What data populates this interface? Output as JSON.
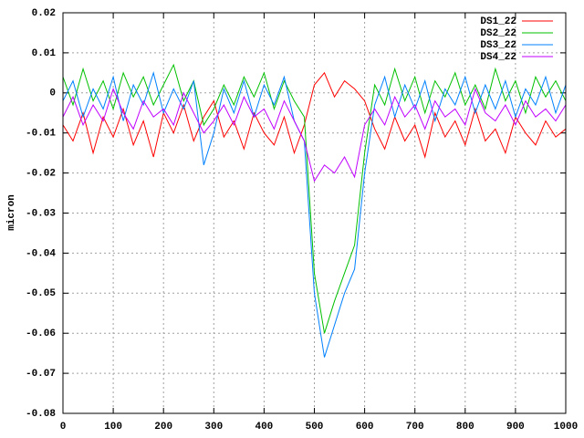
{
  "chart_data": {
    "type": "line",
    "y_label": "micron",
    "x": [
      0,
      20,
      40,
      60,
      80,
      100,
      120,
      140,
      160,
      180,
      200,
      220,
      240,
      260,
      280,
      300,
      320,
      340,
      360,
      380,
      400,
      420,
      440,
      460,
      480,
      500,
      520,
      540,
      560,
      580,
      600,
      620,
      640,
      660,
      680,
      700,
      720,
      740,
      760,
      780,
      800,
      820,
      840,
      860,
      880,
      900,
      920,
      940,
      960,
      980,
      1000
    ],
    "series": [
      {
        "name": "DS1_22",
        "color": "#ff0000",
        "values": [
          -0.008,
          -0.012,
          -0.005,
          -0.015,
          -0.006,
          -0.011,
          -0.004,
          -0.013,
          -0.007,
          -0.016,
          -0.005,
          -0.01,
          -0.003,
          -0.012,
          -0.006,
          -0.002,
          -0.011,
          -0.007,
          -0.014,
          -0.005,
          -0.01,
          -0.013,
          -0.006,
          -0.015,
          -0.008,
          0.002,
          0.005,
          -0.001,
          0.003,
          0.001,
          -0.002,
          -0.009,
          -0.014,
          -0.006,
          -0.012,
          -0.008,
          -0.016,
          -0.005,
          -0.011,
          -0.007,
          -0.013,
          -0.004,
          -0.012,
          -0.009,
          -0.015,
          -0.006,
          -0.01,
          -0.013,
          -0.007,
          -0.011,
          -0.009
        ]
      },
      {
        "name": "DS2_22",
        "color": "#00c000",
        "values": [
          0.004,
          -0.003,
          0.006,
          -0.002,
          0.003,
          -0.004,
          0.005,
          -0.001,
          0.004,
          -0.003,
          0.002,
          0.007,
          -0.002,
          0.003,
          -0.008,
          -0.004,
          0.002,
          -0.003,
          0.004,
          -0.001,
          0.005,
          -0.004,
          0.003,
          -0.002,
          -0.006,
          -0.045,
          -0.06,
          -0.052,
          -0.045,
          -0.038,
          -0.015,
          0.002,
          -0.003,
          0.006,
          -0.002,
          0.004,
          -0.005,
          0.003,
          -0.001,
          0.005,
          -0.003,
          0.002,
          -0.004,
          0.006,
          -0.002,
          0.003,
          -0.005,
          0.004,
          -0.001,
          0.003,
          -0.002
        ]
      },
      {
        "name": "DS3_22",
        "color": "#0080ff",
        "values": [
          -0.002,
          0.003,
          -0.006,
          0.001,
          -0.004,
          0.004,
          -0.007,
          0.002,
          -0.003,
          0.005,
          -0.005,
          0.001,
          -0.004,
          0.003,
          -0.018,
          -0.01,
          0.001,
          -0.005,
          0.003,
          -0.006,
          0.002,
          -0.003,
          0.004,
          -0.007,
          -0.012,
          -0.05,
          -0.066,
          -0.058,
          -0.05,
          -0.044,
          -0.02,
          -0.003,
          0.004,
          -0.006,
          0.002,
          -0.004,
          0.003,
          -0.007,
          0.001,
          -0.003,
          0.004,
          -0.005,
          0.002,
          -0.004,
          0.003,
          -0.006,
          0.001,
          -0.003,
          0.004,
          -0.005,
          0.002
        ]
      },
      {
        "name": "DS4_22",
        "color": "#c000ff",
        "values": [
          -0.006,
          -0.001,
          -0.008,
          -0.003,
          -0.007,
          0.001,
          -0.005,
          -0.009,
          -0.002,
          -0.006,
          -0.004,
          -0.008,
          0.0,
          -0.005,
          -0.01,
          -0.007,
          -0.003,
          -0.008,
          -0.001,
          -0.006,
          -0.004,
          -0.009,
          -0.002,
          -0.007,
          -0.012,
          -0.022,
          -0.018,
          -0.02,
          -0.016,
          -0.021,
          -0.008,
          -0.004,
          -0.008,
          -0.001,
          -0.006,
          -0.003,
          -0.009,
          -0.002,
          -0.006,
          -0.004,
          -0.008,
          0.001,
          -0.005,
          -0.007,
          -0.003,
          -0.008,
          -0.002,
          -0.006,
          -0.004,
          -0.007,
          -0.003
        ]
      }
    ],
    "xlim": [
      0,
      1000
    ],
    "ylim": [
      -0.08,
      0.02
    ],
    "xticks": [
      0,
      100,
      200,
      300,
      400,
      500,
      600,
      700,
      800,
      900,
      1000
    ],
    "yticks": [
      0.02,
      0.01,
      0,
      -0.01,
      -0.02,
      -0.03,
      -0.04,
      -0.05,
      -0.06,
      -0.07,
      -0.08
    ],
    "grid": true,
    "legend": "top-right"
  }
}
